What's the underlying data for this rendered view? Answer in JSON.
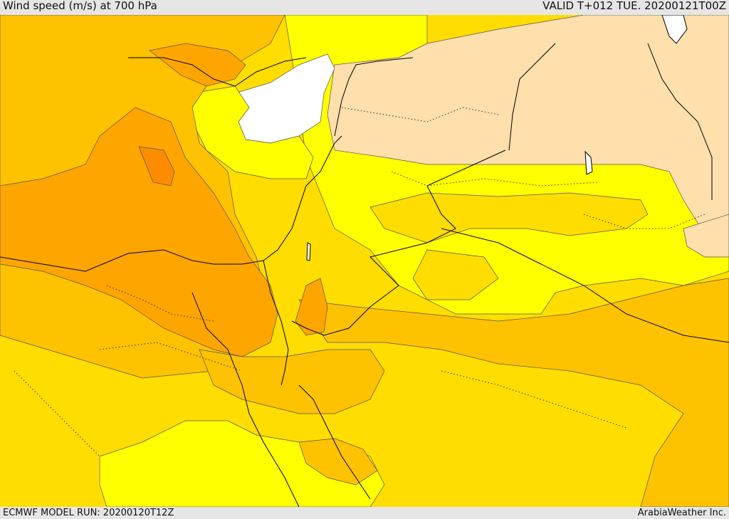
{
  "header": {
    "title": "Wind speed (m/s) at 700 hPa",
    "valid": "VALID T+012 TUE. 20200121T00Z"
  },
  "footer": {
    "model_run": "ECMWF MODEL RUN: 20200120T12Z",
    "credit": "ArabiaWeather Inc."
  },
  "colors": {
    "lightest": "#ffffff",
    "tan": "#ffdfab",
    "yellow": "#ffff00",
    "gold": "#ffdd00",
    "amber": "#ffc200",
    "orange": "#ffa500",
    "dark_orange": "#ff8c00",
    "deep_orange": "#ff7a00"
  }
}
